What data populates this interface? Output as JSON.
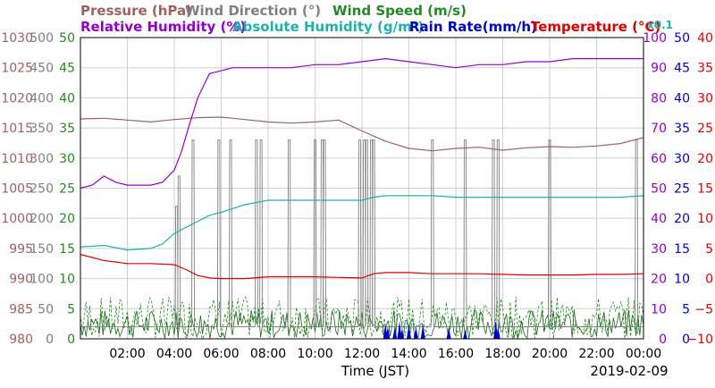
{
  "chart_data": {
    "type": "line",
    "date_label": "2019-02-09",
    "xlabel": "Time (JST)",
    "x_ticks": [
      "02:00",
      "04:00",
      "06:00",
      "08:00",
      "10:00",
      "12:00",
      "14:00",
      "16:00",
      "18:00",
      "20:00",
      "22:00",
      "00:00"
    ],
    "x_range_hours": [
      0,
      24
    ],
    "axes": [
      {
        "name": "Pressure (hPa)",
        "color": "#a06060",
        "range": [
          980,
          1030
        ],
        "ticks": [
          "980",
          "985",
          "990",
          "995",
          "1000",
          "1005",
          "1010",
          "1015",
          "1020",
          "1025",
          "1030"
        ]
      },
      {
        "name": "Wind Direction (°)",
        "color": "#808080",
        "range": [
          0,
          500
        ],
        "ticks": [
          "0",
          "50",
          "100",
          "150",
          "200",
          "250",
          "300",
          "350",
          "400",
          "450",
          "500"
        ]
      },
      {
        "name": "Wind Speed (m/s)",
        "color": "#228b22",
        "range": [
          0,
          50
        ],
        "ticks": [
          "0",
          "5",
          "10",
          "15",
          "20",
          "25",
          "30",
          "35",
          "40",
          "45",
          "50"
        ]
      },
      {
        "name": "Relative Humidity (%)",
        "color": "#9400d3",
        "range": [
          0,
          100
        ],
        "ticks": [
          "0",
          "10",
          "20",
          "30",
          "40",
          "50",
          "60",
          "70",
          "80",
          "90",
          "100"
        ]
      },
      {
        "name": "Absolute Humidity (g/m³)",
        "color": "#20b2aa",
        "unit_note": "x0.1",
        "range": [
          0,
          100
        ]
      },
      {
        "name": "Rain Rate(mm/h)",
        "color": "#0000cd",
        "range": [
          0,
          50
        ],
        "ticks": [
          "0",
          "5",
          "10",
          "15",
          "20",
          "25",
          "30",
          "35",
          "40",
          "45",
          "50"
        ]
      },
      {
        "name": "Temperature (°C)",
        "color": "#e00000",
        "range": [
          -10,
          40
        ],
        "ticks": [
          "−10",
          "−5",
          "0",
          "5",
          "10",
          "15",
          "20",
          "25",
          "30",
          "35",
          "40"
        ]
      }
    ],
    "series": [
      {
        "name": "Pressure (hPa)",
        "color": "#a06060",
        "axis": 0,
        "x": [
          0,
          1,
          2,
          3,
          4,
          5,
          6,
          7,
          8,
          9,
          10,
          11,
          12,
          13,
          14,
          15,
          16,
          17,
          18,
          19,
          20,
          21,
          22,
          23,
          24
        ],
        "y": [
          1016.5,
          1016.6,
          1016.3,
          1016.0,
          1016.4,
          1016.7,
          1016.8,
          1016.4,
          1016.0,
          1015.8,
          1016.0,
          1016.3,
          1014.5,
          1012.8,
          1011.6,
          1011.2,
          1011.6,
          1011.8,
          1011.3,
          1011.7,
          1011.9,
          1011.8,
          1012.0,
          1012.4,
          1013.4
        ]
      },
      {
        "name": "Relative Humidity (%)",
        "color": "#9400d3",
        "axis": 3,
        "x": [
          0,
          0.5,
          1,
          1.5,
          2,
          2.5,
          3,
          3.5,
          4,
          4.3,
          4.6,
          5,
          5.5,
          6,
          6.5,
          7,
          8,
          9,
          10,
          11,
          12,
          13,
          14,
          15,
          16,
          17,
          18,
          19,
          20,
          21,
          22,
          23,
          24
        ],
        "y": [
          50,
          51,
          54,
          52,
          51,
          51,
          51,
          52,
          56,
          62,
          70,
          80,
          88,
          89,
          90,
          90,
          90,
          90,
          91,
          91,
          92,
          93,
          92,
          91,
          90,
          91,
          91,
          92,
          92,
          93,
          93,
          93,
          93
        ]
      },
      {
        "name": "Absolute Humidity (g/m³)",
        "color": "#20b2aa",
        "axis": 4,
        "x": [
          0,
          1,
          2,
          3,
          3.5,
          4,
          4.5,
          5,
          5.5,
          6,
          7,
          8,
          9,
          10,
          11,
          12,
          12.5,
          13,
          14,
          15,
          16,
          17,
          18,
          19,
          20,
          21,
          22,
          23,
          24
        ],
        "y": [
          30.5,
          31,
          29.5,
          30,
          31.5,
          35,
          37,
          39,
          41,
          42,
          44.5,
          46,
          46,
          46,
          46,
          46,
          47,
          47.5,
          47.5,
          47.5,
          47,
          47,
          47,
          47,
          47,
          47,
          47,
          47,
          47.5
        ]
      },
      {
        "name": "Temperature (°C)",
        "color": "#e00000",
        "axis": 6,
        "x": [
          0,
          0.5,
          1,
          2,
          3,
          4,
          4.5,
          5,
          5.5,
          6,
          7,
          8,
          9,
          10,
          11,
          12,
          12.5,
          13,
          14,
          15,
          16,
          17,
          18,
          19,
          20,
          21,
          22,
          23,
          24
        ],
        "y": [
          4,
          3.5,
          3,
          2.5,
          2.5,
          2.3,
          1.5,
          0.5,
          0.1,
          0,
          0,
          0.3,
          0.3,
          0.3,
          0.2,
          0.1,
          0.8,
          1.0,
          1.0,
          0.8,
          0.8,
          0.8,
          0.7,
          0.6,
          0.6,
          0.6,
          0.7,
          0.7,
          0.8
        ]
      },
      {
        "name": "Wind Direction (°)",
        "color": "#808080",
        "axis": 1,
        "baseline": 20,
        "spikes": [
          [
            4.1,
            220
          ],
          [
            4.2,
            270
          ],
          [
            4.8,
            330
          ],
          [
            5.9,
            330
          ],
          [
            6.4,
            330
          ],
          [
            7.5,
            330
          ],
          [
            7.7,
            330
          ],
          [
            8.9,
            330
          ],
          [
            10.0,
            330
          ],
          [
            10.3,
            330
          ],
          [
            10.4,
            330
          ],
          [
            11.9,
            330
          ],
          [
            12.1,
            330
          ],
          [
            12.2,
            330
          ],
          [
            12.4,
            330
          ],
          [
            12.5,
            330
          ],
          [
            15.0,
            330
          ],
          [
            16.4,
            330
          ],
          [
            17.6,
            330
          ],
          [
            17.8,
            330
          ],
          [
            20.0,
            330
          ],
          [
            23.7,
            330
          ]
        ]
      },
      {
        "name": "Wind Speed (m/s)",
        "color": "#228b22",
        "axis": 2,
        "max": 7
      },
      {
        "name": "Rain Rate(mm/h)",
        "color": "#0000cd",
        "axis": 5,
        "bursts": [
          [
            13.0,
            2.5
          ],
          [
            13.1,
            2.0
          ],
          [
            13.4,
            2.0
          ],
          [
            13.6,
            3.0
          ],
          [
            13.7,
            1.5
          ],
          [
            14.0,
            2.5
          ],
          [
            14.3,
            2.0
          ],
          [
            14.6,
            2.5
          ],
          [
            15.7,
            2.0
          ],
          [
            16.4,
            1.5
          ],
          [
            17.7,
            3.0
          ],
          [
            17.8,
            2.0
          ]
        ]
      }
    ]
  }
}
